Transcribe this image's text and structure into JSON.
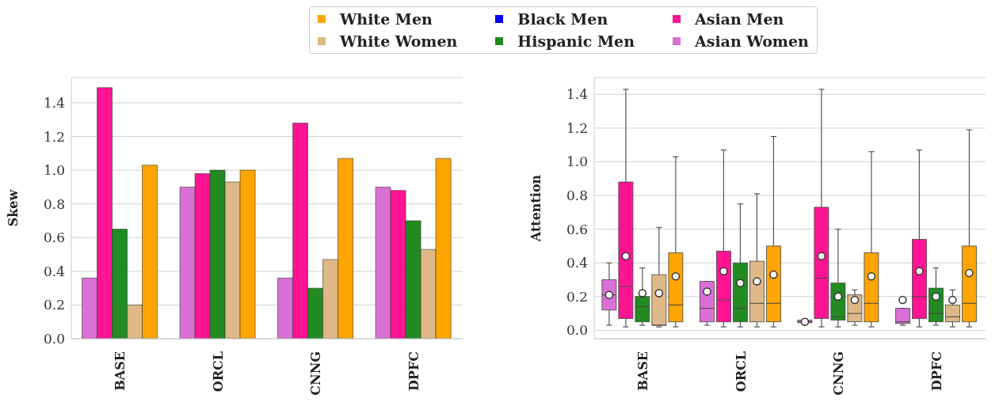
{
  "chart_data": [
    {
      "type": "bar",
      "ylabel": "Skew",
      "categories": [
        "BASE",
        "ORCL",
        "CNNG",
        "DPFC"
      ],
      "ylim": [
        0,
        1.55
      ],
      "yticks": [
        {
          "value": 0,
          "label": "0.0"
        },
        {
          "value": 0.2,
          "label": "0.2"
        },
        {
          "value": 0.4,
          "label": "0.4"
        },
        {
          "value": 0.6,
          "label": "0.6"
        },
        {
          "value": 0.8,
          "label": "0.8"
        },
        {
          "value": 1,
          "label": "1.0"
        },
        {
          "value": 1.2,
          "label": "1.2"
        },
        {
          "value": 1.4,
          "label": "1.4"
        }
      ],
      "grid": "y",
      "legend": "top",
      "series": [
        {
          "name": "Asian Women",
          "color": "#da70d6",
          "values": [
            0.36,
            0.9,
            0.36,
            0.9
          ]
        },
        {
          "name": "Asian Men",
          "color": "#ff1493",
          "values": [
            1.49,
            0.98,
            1.28,
            0.88
          ]
        },
        {
          "name": "Hispanic Men",
          "color": "#228b22",
          "values": [
            0.65,
            1.0,
            0.3,
            0.7
          ]
        },
        {
          "name": "White Women",
          "color": "#deb887",
          "values": [
            0.2,
            0.93,
            0.47,
            0.53
          ]
        },
        {
          "name": "White Men",
          "color": "#ffa500",
          "values": [
            1.03,
            1.0,
            1.07,
            1.07
          ]
        },
        {
          "name": "Black Men",
          "color": "#0000ff",
          "values": [
            null,
            null,
            null,
            null
          ]
        }
      ]
    },
    {
      "type": "box",
      "ylabel": "Attention",
      "categories": [
        "BASE",
        "ORCL",
        "CNNG",
        "DPFC"
      ],
      "ylim": [
        -0.05,
        1.5
      ],
      "yticks": [
        {
          "value": 0,
          "label": "0.0"
        },
        {
          "value": 0.2,
          "label": "0.2"
        },
        {
          "value": 0.4,
          "label": "0.4"
        },
        {
          "value": 0.6,
          "label": "0.6"
        },
        {
          "value": 0.8,
          "label": "0.8"
        },
        {
          "value": 1,
          "label": "1.0"
        },
        {
          "value": 1.2,
          "label": "1.2"
        },
        {
          "value": 1.4,
          "label": "1.4"
        }
      ],
      "grid": "y",
      "series": [
        {
          "color": "#da70d6",
          "boxes": [
            {
              "low": 0.03,
              "q1": 0.12,
              "median": 0.21,
              "q3": 0.3,
              "high": 0.4,
              "mean": 0.21
            },
            {
              "low": 0.03,
              "q1": 0.05,
              "median": 0.13,
              "q3": 0.29,
              "high": 0.29,
              "mean": 0.23
            },
            {
              "low": 0.04,
              "q1": 0.045,
              "median": 0.05,
              "q3": 0.06,
              "high": 0.065,
              "mean": 0.05
            },
            {
              "low": 0.03,
              "q1": 0.04,
              "median": 0.05,
              "q3": 0.13,
              "high": 0.13,
              "mean": 0.18
            }
          ]
        },
        {
          "color": "#ff1493",
          "boxes": [
            {
              "low": 0.02,
              "q1": 0.07,
              "median": 0.26,
              "q3": 0.88,
              "high": 1.43,
              "mean": 0.44
            },
            {
              "low": 0.02,
              "q1": 0.05,
              "median": 0.18,
              "q3": 0.47,
              "high": 1.07,
              "mean": 0.35
            },
            {
              "low": 0.02,
              "q1": 0.07,
              "median": 0.31,
              "q3": 0.73,
              "high": 1.43,
              "mean": 0.44
            },
            {
              "low": 0.02,
              "q1": 0.07,
              "median": 0.2,
              "q3": 0.54,
              "high": 1.07,
              "mean": 0.35
            }
          ]
        },
        {
          "color": "#228b22",
          "boxes": [
            {
              "low": 0.03,
              "q1": 0.05,
              "median": 0.14,
              "q3": 0.2,
              "high": 0.37,
              "mean": 0.22
            },
            {
              "low": 0.02,
              "q1": 0.05,
              "median": 0.13,
              "q3": 0.4,
              "high": 0.75,
              "mean": 0.28
            },
            {
              "low": 0.02,
              "q1": 0.06,
              "median": 0.08,
              "q3": 0.28,
              "high": 0.6,
              "mean": 0.2
            },
            {
              "low": 0.03,
              "q1": 0.05,
              "median": 0.1,
              "q3": 0.25,
              "high": 0.37,
              "mean": 0.2
            }
          ]
        },
        {
          "color": "#deb887",
          "boxes": [
            {
              "low": 0.02,
              "q1": 0.03,
              "median": 0.03,
              "q3": 0.33,
              "high": 0.61,
              "mean": 0.22
            },
            {
              "low": 0.02,
              "q1": 0.05,
              "median": 0.16,
              "q3": 0.41,
              "high": 0.81,
              "mean": 0.29
            },
            {
              "low": 0.03,
              "q1": 0.05,
              "median": 0.1,
              "q3": 0.21,
              "high": 0.24,
              "mean": 0.18
            },
            {
              "low": 0.02,
              "q1": 0.05,
              "median": 0.08,
              "q3": 0.15,
              "high": 0.24,
              "mean": 0.18
            }
          ]
        },
        {
          "color": "#ffa500",
          "boxes": [
            {
              "low": 0.02,
              "q1": 0.05,
              "median": 0.15,
              "q3": 0.46,
              "high": 1.03,
              "mean": 0.32
            },
            {
              "low": 0.02,
              "q1": 0.05,
              "median": 0.16,
              "q3": 0.5,
              "high": 1.15,
              "mean": 0.33
            },
            {
              "low": 0.02,
              "q1": 0.05,
              "median": 0.16,
              "q3": 0.46,
              "high": 1.06,
              "mean": 0.32
            },
            {
              "low": 0.02,
              "q1": 0.05,
              "median": 0.16,
              "q3": 0.5,
              "high": 1.19,
              "mean": 0.34
            }
          ]
        }
      ]
    }
  ]
}
